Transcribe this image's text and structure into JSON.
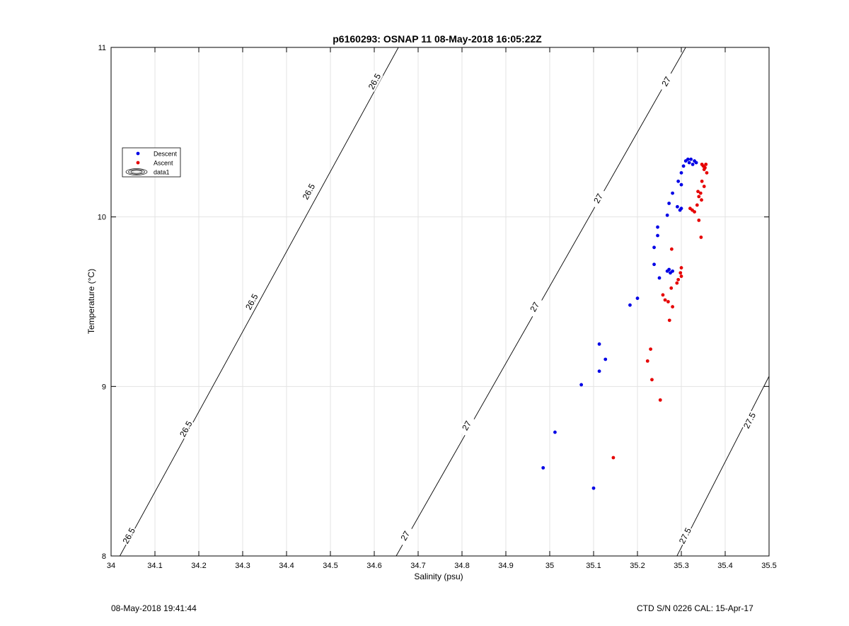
{
  "chart_data": {
    "type": "scatter",
    "title": "p6160293: OSNAP 11 08-May-2018 16:05:22Z",
    "xlabel": "Salinity (psu)",
    "ylabel": "Temperature (°C)",
    "xlim": [
      34,
      35.5
    ],
    "ylim": [
      8,
      11
    ],
    "xticks": [
      34,
      34.1,
      34.2,
      34.3,
      34.4,
      34.5,
      34.6,
      34.7,
      34.8,
      34.9,
      35,
      35.1,
      35.2,
      35.3,
      35.4,
      35.5
    ],
    "xtick_labels": [
      "34",
      "34.1",
      "34.2",
      "34.3",
      "34.4",
      "34.5",
      "34.6",
      "34.7",
      "34.8",
      "34.9",
      "35",
      "35.1",
      "35.2",
      "35.3",
      "35.4",
      "35.5"
    ],
    "yticks": [
      8,
      9,
      10,
      11
    ],
    "ytick_labels": [
      "8",
      "9",
      "10",
      "11"
    ],
    "grid": true,
    "legend": {
      "position": "left",
      "entries": [
        "Descent",
        "Ascent",
        "data1"
      ]
    },
    "series": [
      {
        "name": "Descent",
        "color": "#0000e6",
        "points": [
          [
            34.985,
            8.52
          ],
          [
            35.1,
            8.4
          ],
          [
            35.012,
            8.73
          ],
          [
            35.072,
            9.01
          ],
          [
            35.113,
            9.09
          ],
          [
            35.113,
            9.25
          ],
          [
            35.127,
            9.16
          ],
          [
            35.183,
            9.48
          ],
          [
            35.2,
            9.52
          ],
          [
            35.25,
            9.64
          ],
          [
            35.238,
            9.72
          ],
          [
            35.238,
            9.82
          ],
          [
            35.246,
            9.89
          ],
          [
            35.246,
            9.94
          ],
          [
            35.268,
            9.68
          ],
          [
            35.272,
            9.69
          ],
          [
            35.275,
            9.67
          ],
          [
            35.28,
            9.68
          ],
          [
            35.268,
            10.01
          ],
          [
            35.272,
            10.08
          ],
          [
            35.28,
            10.14
          ],
          [
            35.291,
            10.06
          ],
          [
            35.297,
            10.04
          ],
          [
            35.3,
            10.05
          ],
          [
            35.293,
            10.21
          ],
          [
            35.3,
            10.19
          ],
          [
            35.3,
            10.26
          ],
          [
            35.305,
            10.3
          ],
          [
            35.31,
            10.33
          ],
          [
            35.315,
            10.34
          ],
          [
            35.318,
            10.32
          ],
          [
            35.322,
            10.34
          ],
          [
            35.326,
            10.31
          ],
          [
            35.33,
            10.33
          ],
          [
            35.334,
            10.32
          ]
        ]
      },
      {
        "name": "Ascent",
        "color": "#e60000",
        "points": [
          [
            35.145,
            8.58
          ],
          [
            35.252,
            8.92
          ],
          [
            35.233,
            9.04
          ],
          [
            35.223,
            9.15
          ],
          [
            35.23,
            9.22
          ],
          [
            35.273,
            9.39
          ],
          [
            35.28,
            9.47
          ],
          [
            35.263,
            9.51
          ],
          [
            35.27,
            9.5
          ],
          [
            35.258,
            9.54
          ],
          [
            35.277,
            9.58
          ],
          [
            35.29,
            9.61
          ],
          [
            35.293,
            9.63
          ],
          [
            35.3,
            9.65
          ],
          [
            35.298,
            9.67
          ],
          [
            35.3,
            9.7
          ],
          [
            35.278,
            9.81
          ],
          [
            35.345,
            9.88
          ],
          [
            35.34,
            9.98
          ],
          [
            35.32,
            10.05
          ],
          [
            35.325,
            10.04
          ],
          [
            35.33,
            10.03
          ],
          [
            35.336,
            10.07
          ],
          [
            35.346,
            10.1
          ],
          [
            35.34,
            10.12
          ],
          [
            35.338,
            10.15
          ],
          [
            35.344,
            10.14
          ],
          [
            35.352,
            10.18
          ],
          [
            35.347,
            10.21
          ],
          [
            35.358,
            10.26
          ],
          [
            35.352,
            10.28
          ],
          [
            35.356,
            10.31
          ],
          [
            35.35,
            10.3
          ],
          [
            35.347,
            10.31
          ],
          [
            35.354,
            10.29
          ]
        ]
      }
    ],
    "isopycnals": [
      {
        "label": "26.5",
        "p1": [
          34.02,
          8.0
        ],
        "p2": [
          34.655,
          11.0
        ],
        "label_positions": [
          [
            34.04,
            8.12
          ],
          [
            34.17,
            8.75
          ],
          [
            34.32,
            9.5
          ],
          [
            34.45,
            10.15
          ],
          [
            34.6,
            10.8
          ]
        ]
      },
      {
        "label": "27",
        "p1": [
          34.65,
          8.0
        ],
        "p2": [
          35.31,
          11.0
        ],
        "label_positions": [
          [
            34.67,
            8.12
          ],
          [
            34.81,
            8.77
          ],
          [
            34.965,
            9.47
          ],
          [
            35.11,
            10.11
          ],
          [
            35.265,
            10.8
          ]
        ]
      },
      {
        "label": "27.5",
        "p1": [
          35.29,
          8.0
        ],
        "p2": [
          35.5,
          9.06
        ],
        "label_positions": [
          [
            35.308,
            8.12
          ],
          [
            35.455,
            8.8
          ]
        ]
      }
    ]
  },
  "footer": {
    "left_text": "08-May-2018 19:41:44",
    "right_text": "CTD S/N 0226  CAL: 15-Apr-17"
  }
}
